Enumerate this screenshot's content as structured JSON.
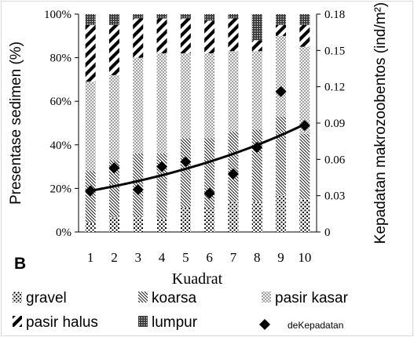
{
  "chart_data": {
    "type": "bar",
    "stacked": true,
    "percent_stacked": true,
    "panel_label": "B",
    "xlabel": "Kuadrat",
    "ylabel_left": "Presentase sedimen (%)",
    "ylabel_right": "Kepadatan makrozoobentos (ind/m²)",
    "categories": [
      "1",
      "2",
      "3",
      "4",
      "5",
      "6",
      "7",
      "8",
      "9",
      "10"
    ],
    "ylim_left": [
      0,
      100
    ],
    "yticks_left": [
      "0%",
      "20%",
      "40%",
      "60%",
      "80%",
      "100%"
    ],
    "ylim_right": [
      0,
      0.18
    ],
    "yticks_right": [
      "0",
      "0.03",
      "0.06",
      "0.09",
      "0.12",
      "0.15",
      "0.18"
    ],
    "grid": false,
    "legend_position": "bottom",
    "series": [
      {
        "name": "gravel",
        "pattern": "gravel",
        "values": [
          4,
          7,
          7,
          6,
          11,
          11,
          14,
          14,
          17,
          15
        ]
      },
      {
        "name": "koarsa",
        "pattern": "koarsa",
        "values": [
          24,
          26,
          29,
          30,
          32,
          32,
          32,
          33,
          36,
          30
        ]
      },
      {
        "name": "pasir kasar",
        "pattern": "kasar",
        "values": [
          41,
          39,
          44,
          46,
          39,
          39,
          37,
          36,
          37,
          40
        ]
      },
      {
        "name": "pasir halus",
        "pattern": "halus",
        "values": [
          26,
          23,
          18,
          16,
          16,
          15,
          15,
          5,
          5,
          10
        ]
      },
      {
        "name": "lumpur",
        "pattern": "lumpur",
        "values": [
          5,
          5,
          2,
          2,
          2,
          3,
          2,
          12,
          5,
          5
        ]
      }
    ],
    "points": {
      "name": "deKepadatan",
      "axis": "right",
      "values": [
        0.034,
        0.053,
        0.035,
        0.054,
        0.058,
        0.032,
        0.048,
        0.07,
        0.116,
        0.088
      ]
    },
    "trendline": {
      "type": "exponential",
      "axis": "right",
      "y_start": 0.034,
      "y_end": 0.089
    }
  }
}
